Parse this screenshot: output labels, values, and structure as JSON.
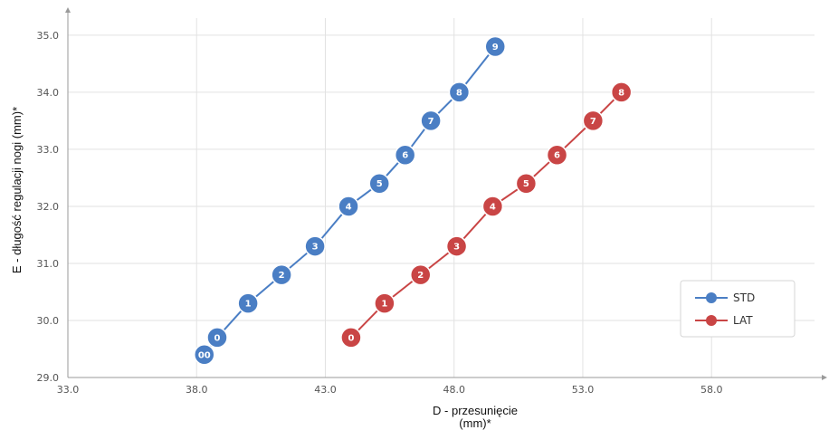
{
  "chart_data": {
    "type": "line",
    "xlabel_lines": [
      "D - przesunięcie",
      "(mm)*"
    ],
    "ylabel": "E - długość regulacji nogi (mm)*",
    "xlim": [
      33.0,
      62.0
    ],
    "ylim": [
      29.0,
      35.3
    ],
    "x_ticks": [
      33.0,
      38.0,
      43.0,
      48.0,
      53.0,
      58.0
    ],
    "y_ticks": [
      29.0,
      30.0,
      31.0,
      32.0,
      33.0,
      34.0,
      35.0
    ],
    "x_tick_labels": [
      "33.0",
      "38.0",
      "43.0",
      "48.0",
      "53.0",
      "58.0"
    ],
    "y_tick_labels": [
      "29.0",
      "30.0",
      "31.0",
      "32.0",
      "33.0",
      "34.0",
      "35.0"
    ],
    "grid": true,
    "legend_position": "bottom-right",
    "series": [
      {
        "name": "STD",
        "color": "#4a7ec4",
        "points": [
          {
            "label": "00",
            "x": 38.3,
            "y": 29.4
          },
          {
            "label": "0",
            "x": 38.8,
            "y": 29.7
          },
          {
            "label": "1",
            "x": 40.0,
            "y": 30.3
          },
          {
            "label": "2",
            "x": 41.3,
            "y": 30.8
          },
          {
            "label": "3",
            "x": 42.6,
            "y": 31.3
          },
          {
            "label": "4",
            "x": 43.9,
            "y": 32.0
          },
          {
            "label": "5",
            "x": 45.1,
            "y": 32.4
          },
          {
            "label": "6",
            "x": 46.1,
            "y": 32.9
          },
          {
            "label": "7",
            "x": 47.1,
            "y": 33.5
          },
          {
            "label": "8",
            "x": 48.2,
            "y": 34.0
          },
          {
            "label": "9",
            "x": 49.6,
            "y": 34.8
          }
        ]
      },
      {
        "name": "LAT",
        "color": "#c94545",
        "points": [
          {
            "label": "0",
            "x": 44.0,
            "y": 29.7
          },
          {
            "label": "1",
            "x": 45.3,
            "y": 30.3
          },
          {
            "label": "2",
            "x": 46.7,
            "y": 30.8
          },
          {
            "label": "3",
            "x": 48.1,
            "y": 31.3
          },
          {
            "label": "4",
            "x": 49.5,
            "y": 32.0
          },
          {
            "label": "5",
            "x": 50.8,
            "y": 32.4
          },
          {
            "label": "6",
            "x": 52.0,
            "y": 32.9
          },
          {
            "label": "7",
            "x": 53.4,
            "y": 33.5
          },
          {
            "label": "8",
            "x": 54.5,
            "y": 34.0
          }
        ]
      }
    ]
  }
}
